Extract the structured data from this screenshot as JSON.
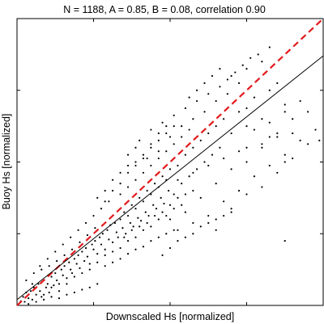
{
  "chart_data": {
    "type": "scatter",
    "title": "N = 1188, A = 0.85, B = 0.08, correlation  0.90",
    "xlabel": "Downscaled Hs [normalized]",
    "ylabel": "Buoy Hs [normalized]",
    "xlim": [
      0,
      4
    ],
    "ylim": [
      0,
      4
    ],
    "x_ticks": [
      1,
      2,
      3
    ],
    "y_ticks": [
      1,
      2,
      3
    ],
    "tick_labels_shown": false,
    "grid": false,
    "legend": "none",
    "series": [
      {
        "label": "1:1 line",
        "style": "dashed",
        "color": "#e31a1c",
        "points": [
          [
            0,
            0
          ],
          [
            4,
            4
          ]
        ]
      },
      {
        "label": "regression fit",
        "style": "solid",
        "color": "#000000",
        "points": [
          [
            0,
            0.08
          ],
          [
            4,
            3.48
          ]
        ]
      },
      {
        "label": "observations",
        "style": "markers",
        "color": "#000000",
        "count": 1188,
        "points": [
          [
            0.05,
            0.06
          ],
          [
            0.08,
            0.12
          ],
          [
            0.1,
            0.05
          ],
          [
            0.12,
            0.18
          ],
          [
            0.15,
            0.1
          ],
          [
            0.18,
            0.2
          ],
          [
            0.2,
            0.08
          ],
          [
            0.22,
            0.25
          ],
          [
            0.25,
            0.15
          ],
          [
            0.28,
            0.3
          ],
          [
            0.3,
            0.2
          ],
          [
            0.32,
            0.12
          ],
          [
            0.35,
            0.35
          ],
          [
            0.38,
            0.25
          ],
          [
            0.4,
            0.3
          ],
          [
            0.42,
            0.18
          ],
          [
            0.45,
            0.4
          ],
          [
            0.48,
            0.28
          ],
          [
            0.5,
            0.45
          ],
          [
            0.52,
            0.35
          ],
          [
            0.55,
            0.3
          ],
          [
            0.58,
            0.5
          ],
          [
            0.6,
            0.42
          ],
          [
            0.62,
            0.55
          ],
          [
            0.65,
            0.38
          ],
          [
            0.68,
            0.6
          ],
          [
            0.7,
            0.5
          ],
          [
            0.72,
            0.45
          ],
          [
            0.75,
            0.65
          ],
          [
            0.78,
            0.58
          ],
          [
            0.8,
            0.7
          ],
          [
            0.82,
            0.52
          ],
          [
            0.85,
            0.75
          ],
          [
            0.88,
            0.62
          ],
          [
            0.9,
            0.8
          ],
          [
            0.92,
            0.68
          ],
          [
            0.95,
            0.58
          ],
          [
            0.98,
            0.85
          ],
          [
            1.0,
            0.78
          ],
          [
            1.02,
            0.9
          ],
          [
            1.05,
            0.72
          ],
          [
            1.08,
            0.95
          ],
          [
            1.1,
            0.85
          ],
          [
            1.12,
            1.0
          ],
          [
            1.15,
            0.78
          ],
          [
            1.18,
            1.05
          ],
          [
            1.2,
            0.92
          ],
          [
            1.22,
            1.12
          ],
          [
            1.25,
            0.88
          ],
          [
            1.28,
            1.15
          ],
          [
            1.3,
            1.02
          ],
          [
            1.32,
            0.95
          ],
          [
            1.35,
            1.2
          ],
          [
            1.38,
            1.08
          ],
          [
            1.4,
            1.3
          ],
          [
            1.42,
            1.0
          ],
          [
            1.45,
            1.25
          ],
          [
            1.48,
            1.15
          ],
          [
            1.5,
            1.4
          ],
          [
            1.52,
            1.1
          ],
          [
            1.55,
            1.35
          ],
          [
            1.58,
            1.22
          ],
          [
            1.6,
            1.5
          ],
          [
            1.62,
            1.18
          ],
          [
            1.65,
            1.45
          ],
          [
            1.68,
            1.3
          ],
          [
            1.7,
            1.6
          ],
          [
            1.72,
            1.25
          ],
          [
            1.75,
            1.55
          ],
          [
            1.78,
            1.4
          ],
          [
            1.8,
            1.7
          ],
          [
            1.82,
            1.35
          ],
          [
            1.85,
            1.65
          ],
          [
            1.88,
            1.5
          ],
          [
            1.9,
            1.8
          ],
          [
            1.92,
            1.42
          ],
          [
            1.95,
            1.75
          ],
          [
            1.98,
            1.6
          ],
          [
            2.0,
            1.9
          ],
          [
            2.05,
            1.55
          ],
          [
            2.1,
            1.95
          ],
          [
            2.15,
            1.7
          ],
          [
            2.2,
            2.1
          ],
          [
            2.25,
            1.8
          ],
          [
            2.3,
            2.2
          ],
          [
            2.35,
            1.9
          ],
          [
            2.4,
            2.3
          ],
          [
            2.45,
            2.0
          ],
          [
            2.5,
            2.4
          ],
          [
            2.55,
            2.1
          ],
          [
            2.6,
            2.5
          ],
          [
            2.65,
            2.2
          ],
          [
            2.7,
            2.6
          ],
          [
            2.8,
            2.4
          ],
          [
            2.9,
            2.7
          ],
          [
            3.0,
            2.5
          ],
          [
            3.1,
            2.9
          ],
          [
            3.2,
            2.6
          ],
          [
            3.3,
            3.0
          ],
          [
            3.5,
            2.8
          ],
          [
            1.45,
            2.1
          ],
          [
            1.6,
            2.3
          ],
          [
            1.75,
            2.45
          ],
          [
            1.9,
            2.55
          ],
          [
            2.05,
            2.65
          ],
          [
            2.2,
            2.75
          ],
          [
            2.35,
            2.85
          ],
          [
            2.5,
            2.95
          ],
          [
            2.65,
            3.05
          ],
          [
            2.8,
            3.2
          ],
          [
            1.55,
            2.2
          ],
          [
            1.7,
            2.05
          ],
          [
            1.85,
            2.15
          ],
          [
            2.0,
            2.35
          ],
          [
            2.15,
            2.5
          ],
          [
            2.3,
            2.6
          ],
          [
            2.45,
            2.7
          ],
          [
            2.6,
            2.85
          ],
          [
            2.75,
            2.95
          ],
          [
            2.9,
            3.1
          ],
          [
            2.0,
            1.2
          ],
          [
            2.2,
            1.3
          ],
          [
            2.4,
            1.5
          ],
          [
            2.6,
            1.7
          ],
          [
            2.8,
            1.9
          ],
          [
            3.0,
            2.0
          ],
          [
            3.2,
            2.2
          ],
          [
            3.4,
            2.4
          ],
          [
            3.6,
            2.6
          ],
          [
            3.8,
            2.7
          ],
          [
            2.3,
            1.15
          ],
          [
            2.5,
            1.25
          ],
          [
            2.7,
            1.45
          ],
          [
            2.9,
            1.6
          ],
          [
            3.1,
            1.8
          ],
          [
            3.3,
            1.95
          ],
          [
            3.5,
            2.1
          ],
          [
            3.7,
            2.3
          ],
          [
            3.9,
            2.45
          ],
          [
            2.1,
            1.05
          ],
          [
            3.3,
            3.6
          ],
          [
            3.2,
            3.4
          ],
          [
            3.0,
            3.3
          ],
          [
            3.4,
            3.1
          ],
          [
            3.25,
            3.25
          ],
          [
            3.0,
            2.2
          ],
          [
            3.3,
            2.35
          ],
          [
            3.5,
            2.0
          ],
          [
            3.6,
            2.4
          ],
          [
            3.0,
            2.75
          ],
          [
            0.3,
            0.55
          ],
          [
            0.4,
            0.65
          ],
          [
            0.5,
            0.75
          ],
          [
            0.6,
            0.85
          ],
          [
            0.7,
            0.95
          ],
          [
            0.8,
            1.05
          ],
          [
            0.9,
            1.15
          ],
          [
            1.0,
            1.25
          ],
          [
            1.1,
            1.35
          ],
          [
            1.2,
            1.45
          ],
          [
            0.2,
            0.3
          ],
          [
            0.35,
            0.15
          ],
          [
            0.45,
            0.25
          ],
          [
            0.55,
            0.2
          ],
          [
            0.65,
            0.3
          ],
          [
            0.75,
            0.4
          ],
          [
            0.85,
            0.45
          ],
          [
            0.95,
            0.5
          ],
          [
            1.05,
            0.6
          ],
          [
            1.15,
            0.7
          ],
          [
            1.25,
            0.75
          ],
          [
            1.35,
            0.8
          ],
          [
            1.45,
            0.9
          ],
          [
            1.55,
            0.95
          ],
          [
            1.65,
            1.05
          ],
          [
            1.75,
            1.1
          ],
          [
            1.85,
            1.2
          ],
          [
            1.95,
            1.25
          ],
          [
            2.05,
            1.35
          ],
          [
            2.15,
            1.4
          ],
          [
            1.35,
            1.55
          ],
          [
            1.45,
            1.65
          ],
          [
            1.55,
            1.75
          ],
          [
            1.65,
            1.85
          ],
          [
            1.75,
            1.95
          ],
          [
            1.85,
            2.05
          ],
          [
            1.95,
            2.15
          ],
          [
            2.05,
            2.25
          ],
          [
            2.15,
            2.35
          ],
          [
            2.25,
            2.45
          ],
          [
            1.15,
            1.45
          ],
          [
            1.25,
            1.6
          ],
          [
            1.35,
            1.7
          ],
          [
            1.45,
            1.85
          ],
          [
            1.55,
            1.95
          ],
          [
            1.65,
            2.05
          ],
          [
            1.75,
            2.2
          ],
          [
            1.85,
            2.3
          ],
          [
            1.95,
            2.4
          ],
          [
            2.05,
            2.5
          ],
          [
            1.4,
            0.95
          ],
          [
            1.5,
            1.05
          ],
          [
            1.6,
            1.1
          ],
          [
            1.7,
            1.15
          ],
          [
            1.8,
            1.25
          ],
          [
            1.9,
            1.3
          ],
          [
            2.0,
            1.4
          ],
          [
            2.1,
            1.5
          ],
          [
            2.2,
            1.55
          ],
          [
            2.3,
            1.6
          ],
          [
            3.5,
            0.9
          ],
          [
            2.6,
            1.05
          ],
          [
            2.8,
            1.35
          ],
          [
            3.0,
            1.55
          ],
          [
            3.2,
            1.65
          ],
          [
            3.4,
            1.85
          ],
          [
            3.1,
            2.45
          ],
          [
            3.3,
            2.55
          ],
          [
            3.5,
            2.7
          ],
          [
            3.7,
            2.85
          ],
          [
            3.4,
            2.35
          ],
          [
            3.6,
            2.05
          ],
          [
            3.8,
            2.25
          ],
          [
            3.95,
            2.3
          ],
          [
            3.2,
            2.25
          ],
          [
            2.9,
            2.15
          ],
          [
            2.7,
            2.05
          ],
          [
            2.5,
            1.95
          ],
          [
            2.3,
            1.85
          ],
          [
            2.1,
            1.75
          ],
          [
            0.15,
            0.02
          ],
          [
            0.25,
            0.05
          ],
          [
            0.35,
            0.08
          ],
          [
            0.45,
            0.12
          ],
          [
            0.55,
            0.1
          ],
          [
            0.65,
            0.15
          ],
          [
            0.75,
            0.18
          ],
          [
            0.85,
            0.22
          ],
          [
            0.95,
            0.25
          ],
          [
            1.05,
            0.3
          ],
          [
            0.12,
            0.35
          ],
          [
            0.22,
            0.45
          ],
          [
            0.32,
            0.5
          ],
          [
            0.42,
            0.55
          ],
          [
            0.52,
            0.62
          ],
          [
            0.62,
            0.7
          ],
          [
            0.72,
            0.78
          ],
          [
            0.82,
            0.88
          ],
          [
            0.92,
            0.98
          ],
          [
            1.02,
            1.08
          ],
          [
            1.15,
            0.55
          ],
          [
            1.25,
            0.6
          ],
          [
            1.35,
            0.65
          ],
          [
            1.45,
            0.72
          ],
          [
            1.55,
            0.78
          ],
          [
            1.65,
            0.82
          ],
          [
            1.75,
            0.9
          ],
          [
            1.85,
            0.95
          ],
          [
            1.95,
            1.0
          ],
          [
            2.05,
            1.05
          ],
          [
            1.9,
            0.7
          ],
          [
            2.0,
            0.8
          ],
          [
            2.1,
            0.9
          ],
          [
            2.2,
            0.95
          ],
          [
            2.3,
            1.0
          ],
          [
            2.4,
            1.1
          ],
          [
            2.5,
            1.15
          ],
          [
            2.6,
            1.2
          ],
          [
            2.7,
            1.25
          ],
          [
            2.8,
            1.3
          ],
          [
            1.05,
            1.5
          ],
          [
            1.15,
            1.6
          ],
          [
            1.25,
            1.75
          ],
          [
            1.35,
            1.85
          ],
          [
            1.45,
            1.95
          ],
          [
            1.55,
            2.0
          ],
          [
            1.65,
            2.1
          ],
          [
            1.75,
            2.25
          ],
          [
            1.85,
            2.4
          ],
          [
            1.95,
            2.5
          ],
          [
            2.25,
            2.9
          ],
          [
            2.35,
            3.0
          ],
          [
            2.45,
            3.1
          ],
          [
            2.55,
            3.2
          ],
          [
            2.65,
            3.3
          ],
          [
            2.75,
            3.15
          ],
          [
            2.85,
            3.25
          ],
          [
            2.95,
            3.35
          ],
          [
            3.05,
            3.45
          ],
          [
            3.15,
            3.5
          ]
        ]
      }
    ]
  }
}
